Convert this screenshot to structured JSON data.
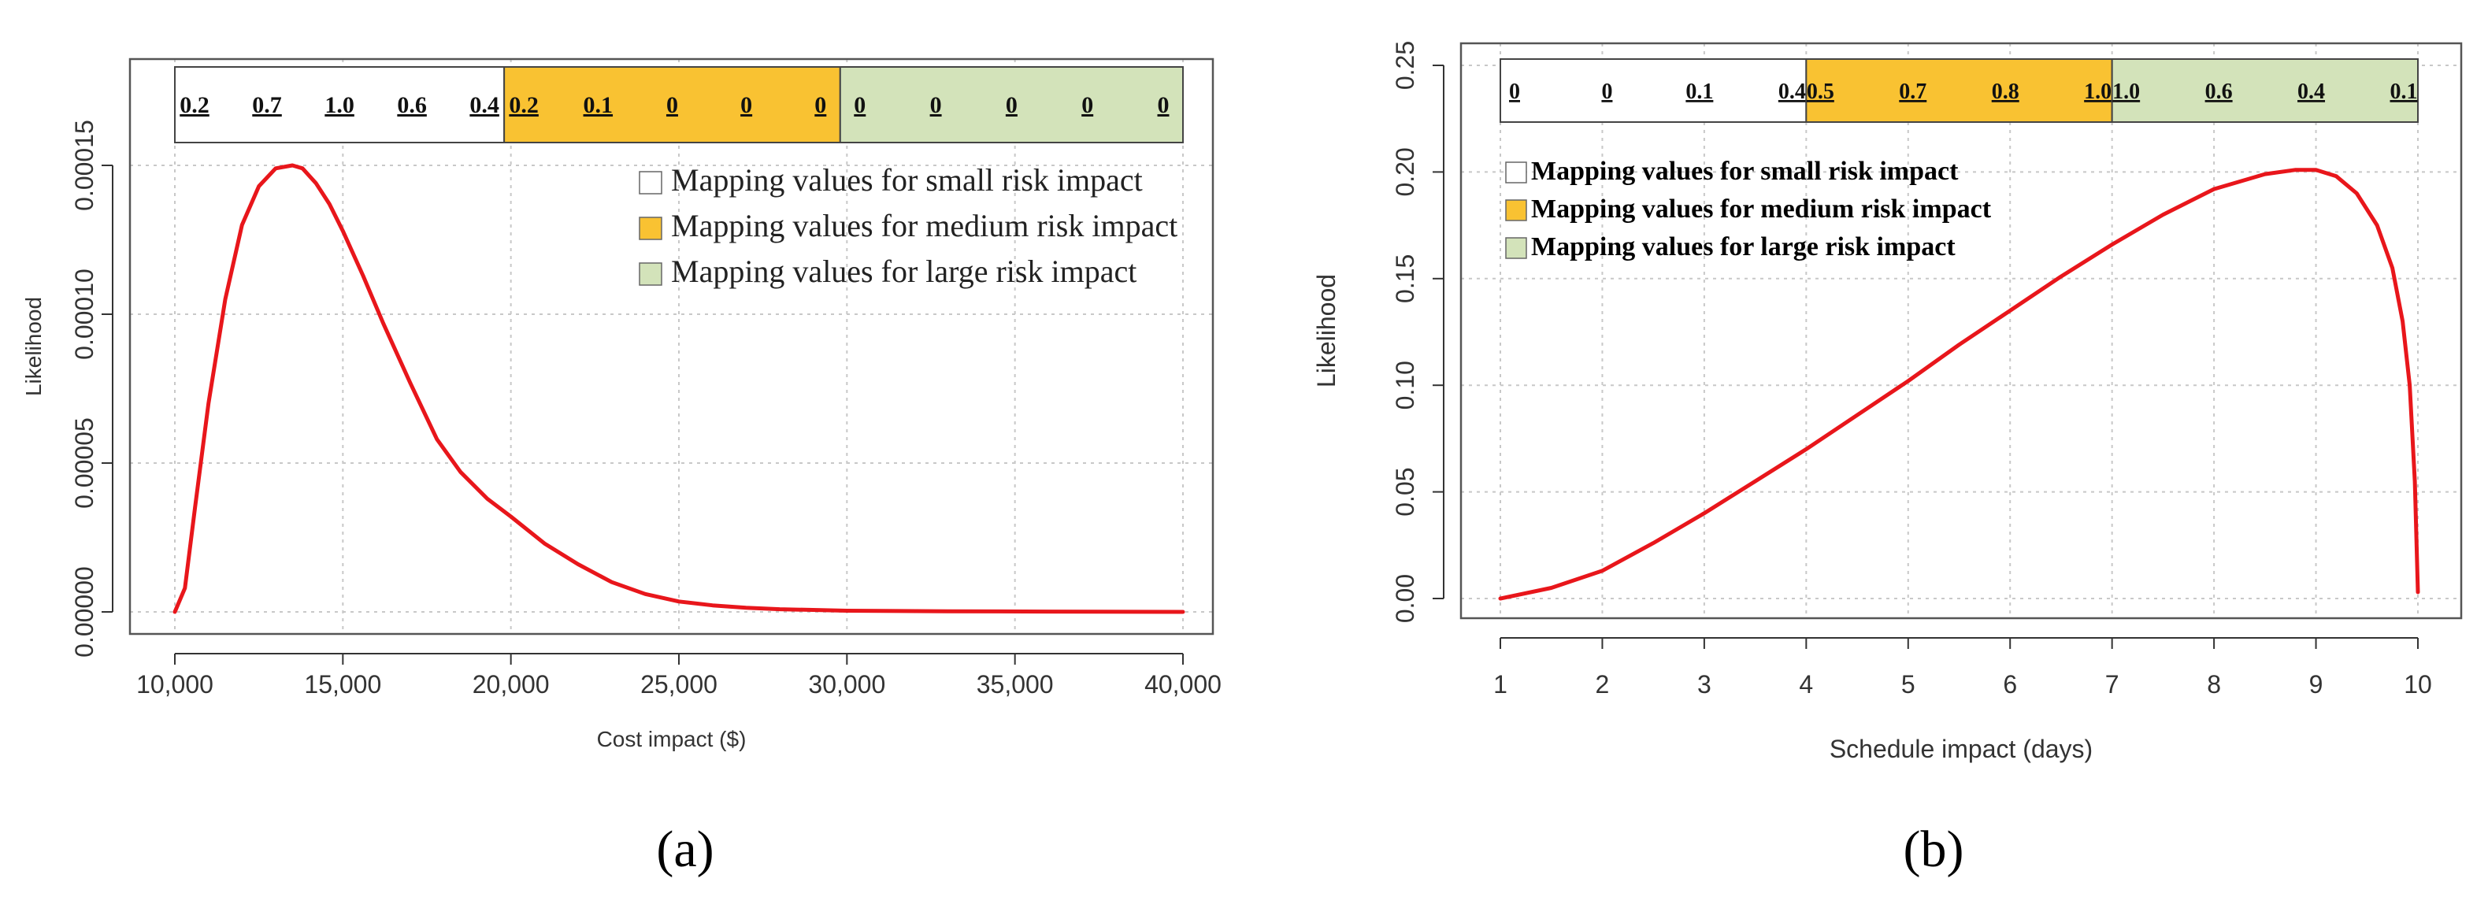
{
  "colors": {
    "small": "#ffffff",
    "medium": "#f9c232",
    "large": "#d3e3ba",
    "curve": "#e8161b",
    "grid": "#c8c8c8",
    "frame": "#555555"
  },
  "chart_data": [
    {
      "type": "line",
      "caption": "(a)",
      "caption_letter": "a",
      "xlabel": "Cost impact ($)",
      "ylabel": "Likelihood",
      "xlim": [
        10000,
        40000
      ],
      "ylim": [
        0,
        0.00015
      ],
      "x_ticks": [
        10000,
        15000,
        20000,
        25000,
        30000,
        35000,
        40000
      ],
      "x_tick_labels": [
        "10,000",
        "15,000",
        "20,000",
        "25,000",
        "30,000",
        "35,000",
        "40,000"
      ],
      "y_ticks": [
        0,
        5e-05,
        0.0001,
        0.00015
      ],
      "y_tick_labels": [
        "0.00000",
        "0.00005",
        "0.00010",
        "0.00015"
      ],
      "grid": true,
      "series": [
        {
          "name": "Likelihood",
          "x": [
            10000,
            10300,
            10600,
            11000,
            11500,
            12000,
            12500,
            13000,
            13500,
            13800,
            14200,
            14600,
            15000,
            15600,
            16200,
            17000,
            17800,
            18500,
            19300,
            20000,
            21000,
            22000,
            23000,
            24000,
            25000,
            26000,
            27000,
            28000,
            30000,
            33000,
            36000,
            40000
          ],
          "y": [
            0,
            8e-06,
            3.5e-05,
            7e-05,
            0.000105,
            0.00013,
            0.000143,
            0.000149,
            0.00015,
            0.000149,
            0.000144,
            0.000137,
            0.000128,
            0.000113,
            9.7e-05,
            7.7e-05,
            5.8e-05,
            4.7e-05,
            3.8e-05,
            3.2e-05,
            2.3e-05,
            1.6e-05,
            1e-05,
            6e-06,
            3.5e-06,
            2.2e-06,
            1.4e-06,
            9e-07,
            4e-07,
            2e-07,
            1e-07,
            0
          ]
        }
      ],
      "mapping_bar": {
        "segments": [
          {
            "group": "small",
            "x_range": [
              10000,
              19800
            ],
            "values": [
              "0.2",
              "0.7",
              "1.0",
              "0.6",
              "0.4"
            ]
          },
          {
            "group": "medium",
            "x_range": [
              19800,
              29800
            ],
            "values": [
              "0.2",
              "0.1",
              "0",
              "0",
              "0"
            ]
          },
          {
            "group": "large",
            "x_range": [
              29800,
              40000
            ],
            "values": [
              "0",
              "0",
              "0",
              "0",
              "0"
            ]
          }
        ]
      },
      "legend": {
        "position": "top-right",
        "entries": [
          {
            "group": "small",
            "label": "Mapping values for small risk impact"
          },
          {
            "group": "medium",
            "label": "Mapping values for medium risk impact"
          },
          {
            "group": "large",
            "label": "Mapping values for large risk impact"
          }
        ]
      }
    },
    {
      "type": "line",
      "caption": "(b)",
      "caption_letter": "b",
      "xlabel": "Schedule impact (days)",
      "ylabel": "Likelihood",
      "xlim": [
        1,
        10
      ],
      "ylim": [
        0,
        0.25
      ],
      "x_ticks": [
        1,
        2,
        3,
        4,
        5,
        6,
        7,
        8,
        9,
        10
      ],
      "x_tick_labels": [
        "1",
        "2",
        "3",
        "4",
        "5",
        "6",
        "7",
        "8",
        "9",
        "10"
      ],
      "y_ticks": [
        0,
        0.05,
        0.1,
        0.15,
        0.2,
        0.25
      ],
      "y_tick_labels": [
        "0.00",
        "0.05",
        "0.10",
        "0.15",
        "0.20",
        "0.25"
      ],
      "grid": true,
      "series": [
        {
          "name": "Likelihood",
          "x": [
            1,
            1.5,
            2,
            2.5,
            3,
            3.5,
            4,
            4.5,
            5,
            5.5,
            6,
            6.5,
            7,
            7.5,
            8,
            8.5,
            8.8,
            9,
            9.2,
            9.4,
            9.6,
            9.75,
            9.85,
            9.92,
            9.97,
            10
          ],
          "y": [
            0,
            0.005,
            0.013,
            0.026,
            0.04,
            0.055,
            0.07,
            0.086,
            0.102,
            0.119,
            0.135,
            0.151,
            0.166,
            0.18,
            0.192,
            0.199,
            0.201,
            0.201,
            0.198,
            0.19,
            0.175,
            0.155,
            0.13,
            0.1,
            0.055,
            0.003
          ]
        }
      ],
      "mapping_bar": {
        "segments": [
          {
            "group": "small",
            "x_range": [
              1,
              4
            ],
            "values": [
              "0",
              "0",
              "0.1",
              "0.4"
            ]
          },
          {
            "group": "medium",
            "x_range": [
              4,
              7
            ],
            "values": [
              "0.5",
              "0.7",
              "0.8",
              "1.0"
            ]
          },
          {
            "group": "large",
            "x_range": [
              7,
              10
            ],
            "values": [
              "1.0",
              "0.6",
              "0.4",
              "0.1"
            ]
          }
        ]
      },
      "legend": {
        "position": "top-left",
        "entries": [
          {
            "group": "small",
            "label": "Mapping values for small risk impact"
          },
          {
            "group": "medium",
            "label": "Mapping values for medium risk impact"
          },
          {
            "group": "large",
            "label": "Mapping values for large risk impact"
          }
        ]
      }
    }
  ]
}
